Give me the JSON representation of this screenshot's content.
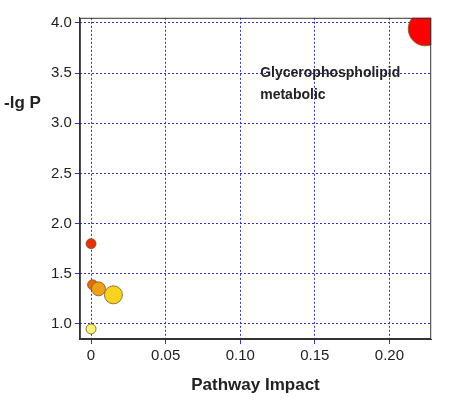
{
  "chart_data": {
    "type": "bubble",
    "x_label": "Pathway Impact",
    "y_label": "-lg P",
    "x": [
      0.224,
      0,
      0.001,
      0.005,
      0.015,
      0
    ],
    "values": [
      3.94,
      1.8,
      1.39,
      1.35,
      1.29,
      0.95
    ],
    "sizes": [
      17,
      5,
      5,
      7,
      9,
      5
    ],
    "colors": [
      "#ff0000",
      "#e8300e",
      "#e86a10",
      "#f0a018",
      "#f8d420",
      "#fff27a"
    ],
    "annotations": [
      {
        "x": 0.224,
        "y": 3.94,
        "text": "Glycerophospholipid metabolic"
      }
    ],
    "xlim": [
      -0.0075,
      0.228
    ],
    "ylim": [
      0.85,
      4.05
    ],
    "xticks": [
      0,
      0.05,
      {
        "value": 0.1,
        "label": "0.10"
      },
      0.15,
      {
        "value": 0.2,
        "label": "0.20"
      }
    ],
    "yticks": [
      {
        "value": 1,
        "label": "1.0"
      },
      1.5,
      {
        "value": 2,
        "label": "2.0"
      },
      2.5,
      {
        "value": 3,
        "label": "3.0"
      },
      3.5,
      {
        "value": 4,
        "label": "4.0"
      }
    ],
    "grid": true,
    "tick_labels": true
  }
}
